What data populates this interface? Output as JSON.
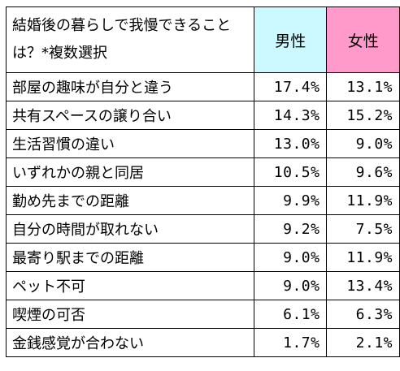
{
  "table": {
    "corner_header": "結婚後の暮らしで我慢できることは？*複数選択",
    "male_header": "男性",
    "female_header": "女性",
    "colors": {
      "male_header_bg": "#ccf9ff",
      "female_header_bg": "#ff9acb"
    },
    "rows": [
      {
        "label": "部屋の趣味が自分と違う",
        "male": "17.4%",
        "female": "13.1%"
      },
      {
        "label": "共有スペースの譲り合い",
        "male": "14.3%",
        "female": "15.2%"
      },
      {
        "label": "生活習慣の違い",
        "male": "13.0%",
        "female": "9.0%"
      },
      {
        "label": "いずれかの親と同居",
        "male": "10.5%",
        "female": "9.6%"
      },
      {
        "label": "勤め先までの距離",
        "male": "9.9%",
        "female": "11.9%"
      },
      {
        "label": "自分の時間が取れない",
        "male": "9.2%",
        "female": "7.5%"
      },
      {
        "label": "最寄り駅までの距離",
        "male": "9.0%",
        "female": "11.9%"
      },
      {
        "label": "ペット不可",
        "male": "9.0%",
        "female": "13.4%"
      },
      {
        "label": "喫煙の可否",
        "male": "6.1%",
        "female": "6.3%"
      },
      {
        "label": "金銭感覚が合わない",
        "male": "1.7%",
        "female": "2.1%"
      }
    ]
  }
}
